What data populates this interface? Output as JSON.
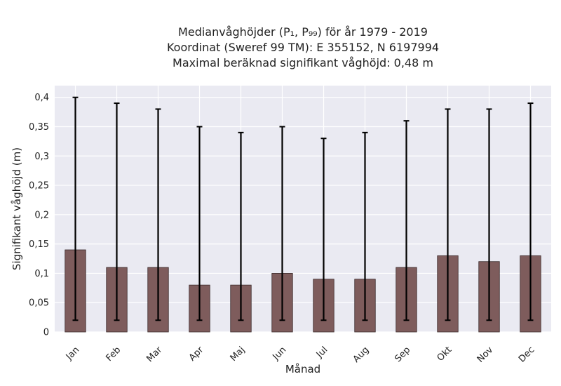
{
  "chart_data": {
    "type": "bar",
    "title_lines": [
      "Medianvåghöjder (P₁, P₉₉) för år 1979 - 2019",
      "Koordinat (Sweref 99 TM): E 355152, N 6197994",
      "Maximal beräknad signifikant våghöjd: 0,48 m"
    ],
    "xlabel": "Månad",
    "ylabel": "Signifikant våghöjd (m)",
    "categories": [
      "Jan",
      "Feb",
      "Mar",
      "Apr",
      "Maj",
      "Jun",
      "Jul",
      "Aug",
      "Sep",
      "Okt",
      "Nov",
      "Dec"
    ],
    "values": [
      0.14,
      0.11,
      0.11,
      0.08,
      0.08,
      0.1,
      0.09,
      0.09,
      0.11,
      0.13,
      0.12,
      0.13
    ],
    "error_low": [
      0.02,
      0.02,
      0.02,
      0.02,
      0.02,
      0.02,
      0.02,
      0.02,
      0.02,
      0.02,
      0.02,
      0.02
    ],
    "error_high": [
      0.4,
      0.39,
      0.38,
      0.35,
      0.34,
      0.35,
      0.33,
      0.34,
      0.36,
      0.38,
      0.38,
      0.39
    ],
    "ylim": [
      0,
      0.42
    ],
    "yticks": [
      0,
      0.05,
      0.1,
      0.15,
      0.2,
      0.25,
      0.3,
      0.35,
      0.4
    ],
    "ytick_labels": [
      "0",
      "0,05",
      "0,1",
      "0,15",
      "0,2",
      "0,25",
      "0,3",
      "0,35",
      "0,4"
    ],
    "grid": true,
    "colors": {
      "background": "#eaeaf2",
      "bar": "#7e5c5c",
      "bar_edge": "#3a2a2a",
      "errorbar": "#000000",
      "grid": "#ffffff"
    }
  }
}
